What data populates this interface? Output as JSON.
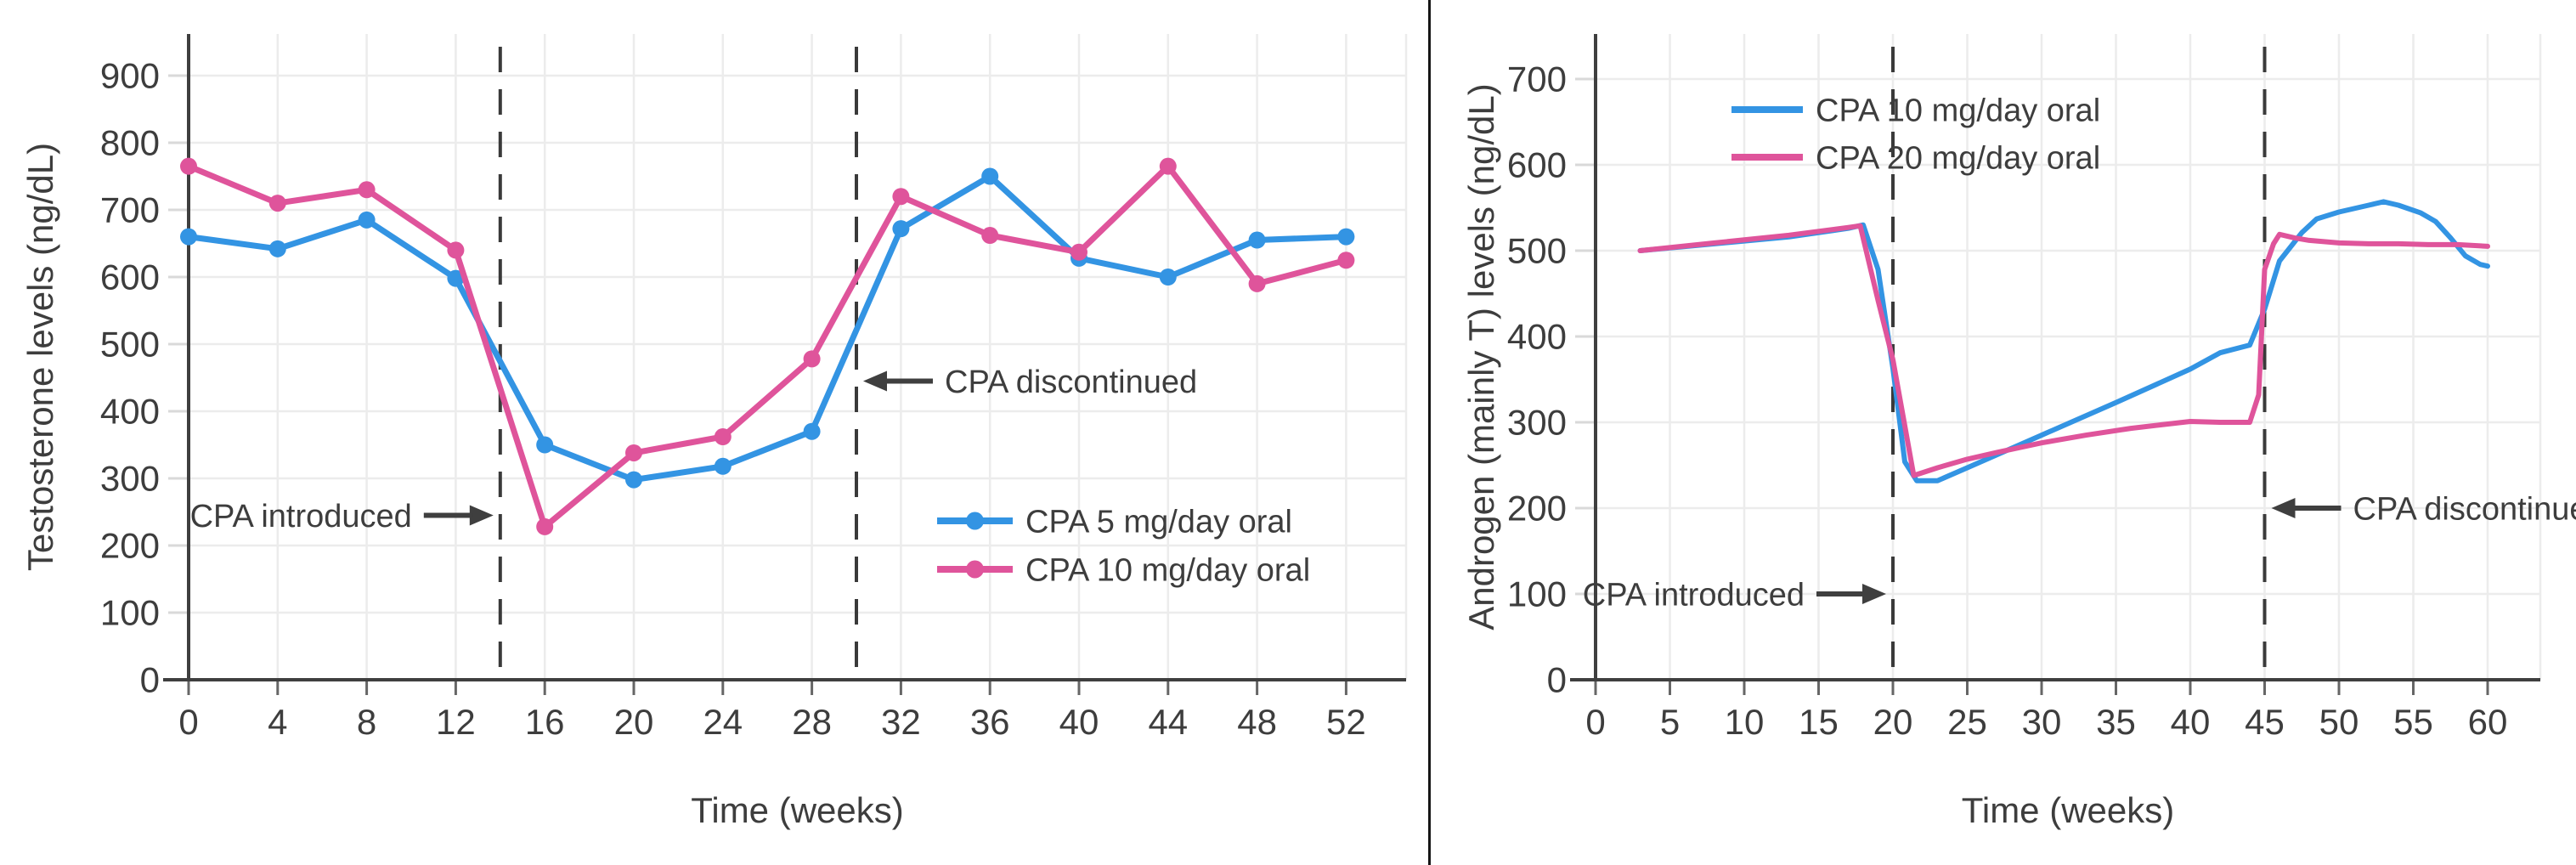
{
  "palette": {
    "background": "#ffffff",
    "text": "#3d3d3d",
    "grid": "#ececec",
    "axis": "#3f3f3f",
    "dashed_line": "#3a3a3a",
    "divider": "#161616",
    "blue_series": "#3394e3",
    "pink_series": "#df549b"
  },
  "chart_data": [
    {
      "type": "line",
      "title": "",
      "xlabel": "Time (weeks)",
      "ylabel": "Testosterone levels (ng/dL)",
      "xlim": [
        0,
        54.7
      ],
      "ylim": [
        0,
        900
      ],
      "grid": true,
      "legend_position": "lower-right",
      "xticks": [
        0,
        4,
        8,
        12,
        16,
        20,
        24,
        28,
        32,
        36,
        40,
        44,
        48,
        52
      ],
      "yticks": [
        0,
        100,
        200,
        300,
        400,
        500,
        600,
        700,
        800,
        900
      ],
      "series": [
        {
          "name": "CPA 5 mg/day oral",
          "color": "#3394e3",
          "marker": true,
          "points": [
            [
              0,
              660
            ],
            [
              4,
              642
            ],
            [
              8,
              685
            ],
            [
              12,
              598
            ],
            [
              16,
              350
            ],
            [
              20,
              298
            ],
            [
              24,
              318
            ],
            [
              28,
              370
            ],
            [
              32,
              672
            ],
            [
              36,
              750
            ],
            [
              40,
              628
            ],
            [
              44,
              600
            ],
            [
              48,
              655
            ],
            [
              52,
              660
            ]
          ]
        },
        {
          "name": "CPA 10 mg/day oral",
          "color": "#df549b",
          "marker": true,
          "points": [
            [
              0,
              765
            ],
            [
              4,
              710
            ],
            [
              8,
              730
            ],
            [
              12,
              640
            ],
            [
              16,
              228
            ],
            [
              20,
              338
            ],
            [
              24,
              362
            ],
            [
              28,
              478
            ],
            [
              32,
              720
            ],
            [
              36,
              662
            ],
            [
              40,
              637
            ],
            [
              44,
              765
            ],
            [
              48,
              590
            ],
            [
              52,
              625
            ]
          ]
        }
      ],
      "annotations": [
        {
          "label": "CPA introduced",
          "x_week": 14,
          "y_value": 245,
          "arrow": "right"
        },
        {
          "label": "CPA discontinued",
          "x_week": 30,
          "y_value": 445,
          "arrow": "left"
        }
      ]
    },
    {
      "type": "line",
      "title": "",
      "xlabel": "Time (weeks)",
      "ylabel": "Androgen (mainly T) levels (ng/dL)",
      "xlim": [
        0,
        63.5
      ],
      "ylim": [
        0,
        700
      ],
      "grid": true,
      "legend_position": "upper-left",
      "xticks": [
        0,
        5,
        10,
        15,
        20,
        25,
        30,
        35,
        40,
        45,
        50,
        55,
        60
      ],
      "yticks": [
        0,
        100,
        200,
        300,
        400,
        500,
        600,
        700
      ],
      "series": [
        {
          "name": "CPA 10 mg/day oral",
          "color": "#3394e3",
          "marker": false,
          "points": [
            [
              3,
              500
            ],
            [
              8,
              508
            ],
            [
              13,
              516
            ],
            [
              17,
              526
            ],
            [
              18,
              530
            ],
            [
              19,
              478
            ],
            [
              20,
              363
            ],
            [
              20.8,
              254
            ],
            [
              21.6,
              232
            ],
            [
              23,
              232
            ],
            [
              25,
              247
            ],
            [
              30,
              285
            ],
            [
              35,
              323
            ],
            [
              40,
              362
            ],
            [
              42,
              381
            ],
            [
              44,
              390
            ],
            [
              45,
              432
            ],
            [
              46,
              488
            ],
            [
              47.5,
              521
            ],
            [
              48.5,
              537
            ],
            [
              50,
              545
            ],
            [
              52,
              553
            ],
            [
              53,
              557
            ],
            [
              54,
              553
            ],
            [
              55.5,
              544
            ],
            [
              56.5,
              534
            ],
            [
              57.5,
              515
            ],
            [
              58.5,
              494
            ],
            [
              59.5,
              484
            ],
            [
              60,
              482
            ]
          ]
        },
        {
          "name": "CPA 20 mg/day oral",
          "color": "#df549b",
          "marker": false,
          "points": [
            [
              3,
              500
            ],
            [
              8,
              509
            ],
            [
              13,
              518
            ],
            [
              17,
              527
            ],
            [
              17.8,
              529
            ],
            [
              19,
              442
            ],
            [
              20,
              373
            ],
            [
              21.4,
              238
            ],
            [
              23,
              247
            ],
            [
              25,
              257
            ],
            [
              27,
              265
            ],
            [
              30,
              276
            ],
            [
              33,
              285
            ],
            [
              36,
              293
            ],
            [
              38,
              297
            ],
            [
              40,
              301
            ],
            [
              42,
              300
            ],
            [
              44,
              300
            ],
            [
              44.6,
              332
            ],
            [
              45,
              478
            ],
            [
              45.6,
              508
            ],
            [
              46,
              519
            ],
            [
              47,
              515
            ],
            [
              48,
              512
            ],
            [
              50,
              509
            ],
            [
              52,
              508
            ],
            [
              54,
              508
            ],
            [
              56,
              507
            ],
            [
              58,
              507
            ],
            [
              60,
              505
            ]
          ]
        }
      ],
      "annotations": [
        {
          "label": "CPA introduced",
          "x_week": 20,
          "y_value": 100,
          "arrow": "right"
        },
        {
          "label": "CPA discontinued",
          "x_week": 45,
          "y_value": 200,
          "arrow": "left"
        }
      ]
    }
  ]
}
